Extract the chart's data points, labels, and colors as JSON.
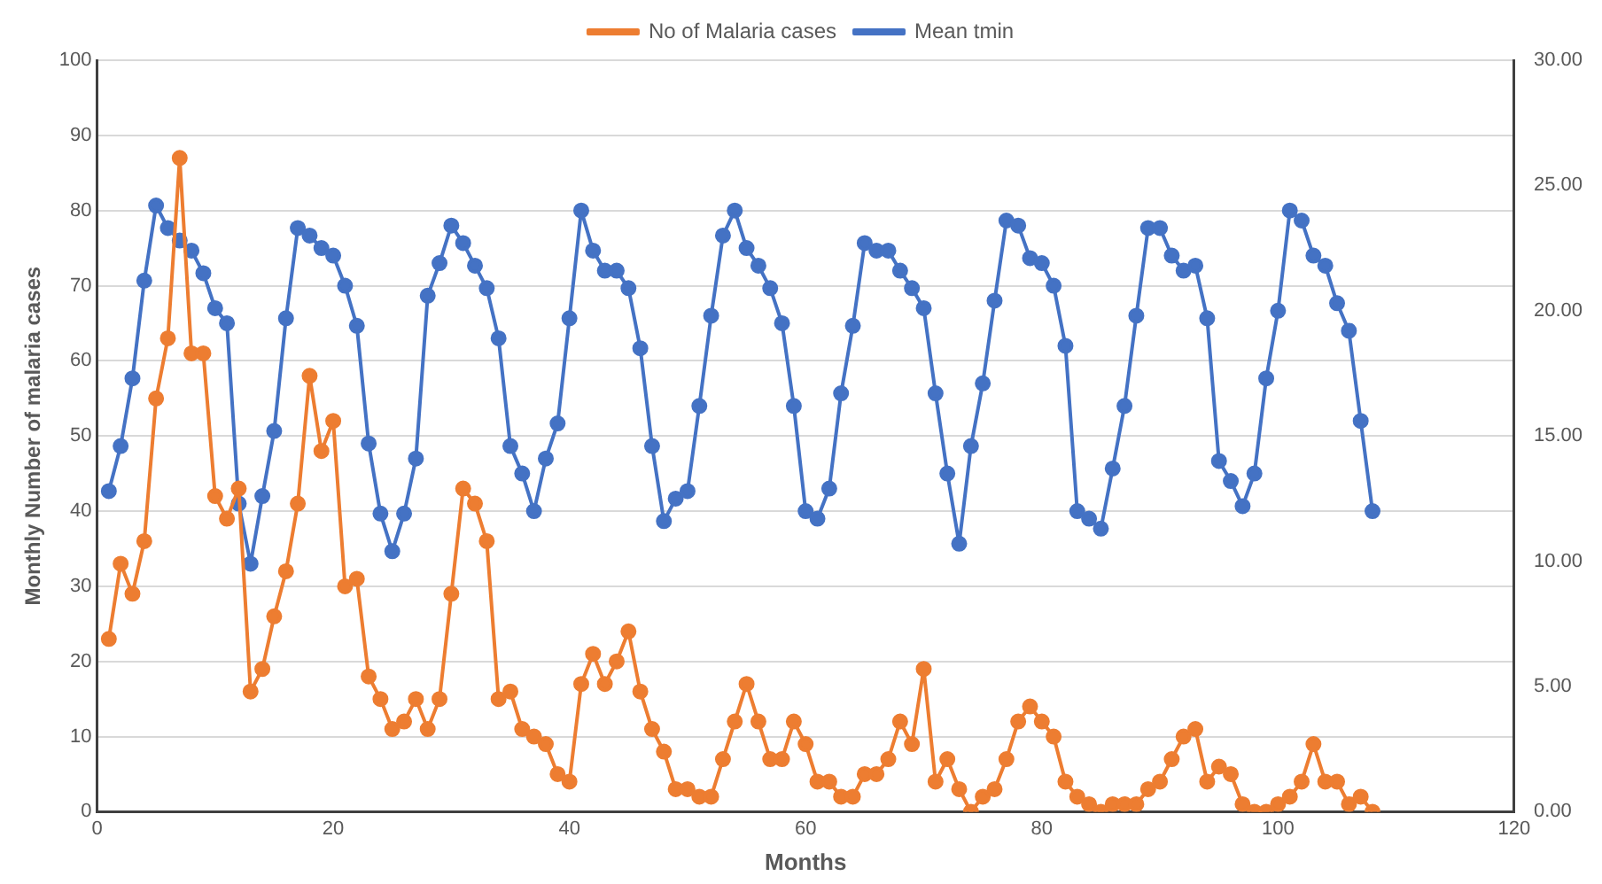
{
  "chart_data": {
    "type": "line",
    "xlabel": "Months",
    "ylabel": "Monthly Number of malaria cases",
    "xlim": [
      0,
      120
    ],
    "xticks": [
      0,
      20,
      40,
      60,
      80,
      100,
      120
    ],
    "ylim": [
      0,
      100
    ],
    "yticks": [
      0,
      10,
      20,
      30,
      40,
      50,
      60,
      70,
      80,
      90,
      100
    ],
    "y2lim": [
      0,
      30
    ],
    "y2ticks": [
      {
        "value": 0,
        "label": "0.00"
      },
      {
        "value": 5,
        "label": "5.00"
      },
      {
        "value": 10,
        "label": "10.00"
      },
      {
        "value": 15,
        "label": "15.00"
      },
      {
        "value": 20,
        "label": "20.00"
      },
      {
        "value": 25,
        "label": "25.00"
      },
      {
        "value": 30,
        "label": "30.00"
      }
    ],
    "grid": "y",
    "legend": "top",
    "marker": "circle",
    "line_style": "solid",
    "x": [
      1,
      2,
      3,
      4,
      5,
      6,
      7,
      8,
      9,
      10,
      11,
      12,
      13,
      14,
      15,
      16,
      17,
      18,
      19,
      20,
      21,
      22,
      23,
      24,
      25,
      26,
      27,
      28,
      29,
      30,
      31,
      32,
      33,
      34,
      35,
      36,
      37,
      38,
      39,
      40,
      41,
      42,
      43,
      44,
      45,
      46,
      47,
      48,
      49,
      50,
      51,
      52,
      53,
      54,
      55,
      56,
      57,
      58,
      59,
      60,
      61,
      62,
      63,
      64,
      65,
      66,
      67,
      68,
      69,
      70,
      71,
      72,
      73,
      74,
      75,
      76,
      77,
      78,
      79,
      80,
      81,
      82,
      83,
      84,
      85,
      86,
      87,
      88,
      89,
      90,
      91,
      92,
      93,
      94,
      95,
      96,
      97,
      98,
      99,
      100,
      101,
      102,
      103,
      104,
      105,
      106,
      107,
      108
    ],
    "series": [
      {
        "name": "No of Malaria cases",
        "color": "#ed7d31",
        "values": [
          23,
          33,
          29,
          36,
          55,
          63,
          87,
          61,
          61,
          42,
          39,
          43,
          16,
          19,
          26,
          32,
          41,
          58,
          48,
          52,
          30,
          31,
          18,
          15,
          11,
          12,
          15,
          11,
          15,
          29,
          43,
          41,
          36,
          15,
          16,
          11,
          10,
          9,
          5,
          4,
          17,
          21,
          17,
          20,
          24,
          16,
          11,
          8,
          3,
          3,
          2,
          2,
          7,
          12,
          17,
          12,
          7,
          7,
          12,
          9,
          4,
          4,
          2,
          2,
          5,
          5,
          7,
          12,
          9,
          19,
          4,
          7,
          3,
          0,
          2,
          3,
          7,
          12,
          14,
          12,
          10,
          4,
          2,
          1,
          0,
          1,
          1,
          1,
          3,
          4,
          7,
          10,
          11,
          4,
          6,
          5,
          1,
          0,
          0,
          1,
          2,
          4,
          9,
          4,
          4,
          1,
          2,
          0
        ]
      },
      {
        "name": "Mean tmin",
        "color": "#4472c4",
        "axis": "y2",
        "values": [
          12.8,
          14.6,
          17.3,
          21.2,
          24.2,
          23.3,
          22.8,
          22.4,
          21.5,
          20.1,
          19.5,
          12.3,
          9.9,
          12.6,
          15.2,
          19.7,
          23.3,
          23.0,
          22.5,
          22.2,
          21.0,
          19.4,
          14.7,
          11.9,
          10.4,
          11.9,
          14.1,
          20.6,
          21.9,
          23.4,
          22.7,
          21.8,
          20.9,
          18.9,
          14.6,
          13.5,
          12.0,
          14.1,
          15.5,
          19.7,
          24.0,
          22.4,
          21.6,
          21.6,
          20.9,
          18.5,
          14.6,
          11.6,
          12.5,
          12.8,
          16.2,
          19.8,
          23.0,
          24.0,
          22.5,
          21.8,
          20.9,
          19.5,
          16.2,
          12.0,
          11.7,
          12.9,
          16.7,
          19.4,
          22.7,
          22.4,
          22.4,
          21.6,
          20.9,
          20.1,
          16.7,
          13.5,
          10.7,
          14.6,
          17.1,
          20.4,
          23.6,
          23.4,
          22.1,
          21.9,
          21.0,
          18.6,
          12.0,
          11.7,
          11.3,
          13.7,
          16.2,
          19.8,
          23.3,
          23.3,
          22.2,
          21.6,
          21.8,
          19.7,
          14.0,
          13.2,
          12.2,
          13.5,
          17.3,
          20.0,
          24.0,
          23.6,
          22.2,
          21.8,
          20.3,
          19.2,
          15.6,
          12.0
        ]
      }
    ]
  }
}
